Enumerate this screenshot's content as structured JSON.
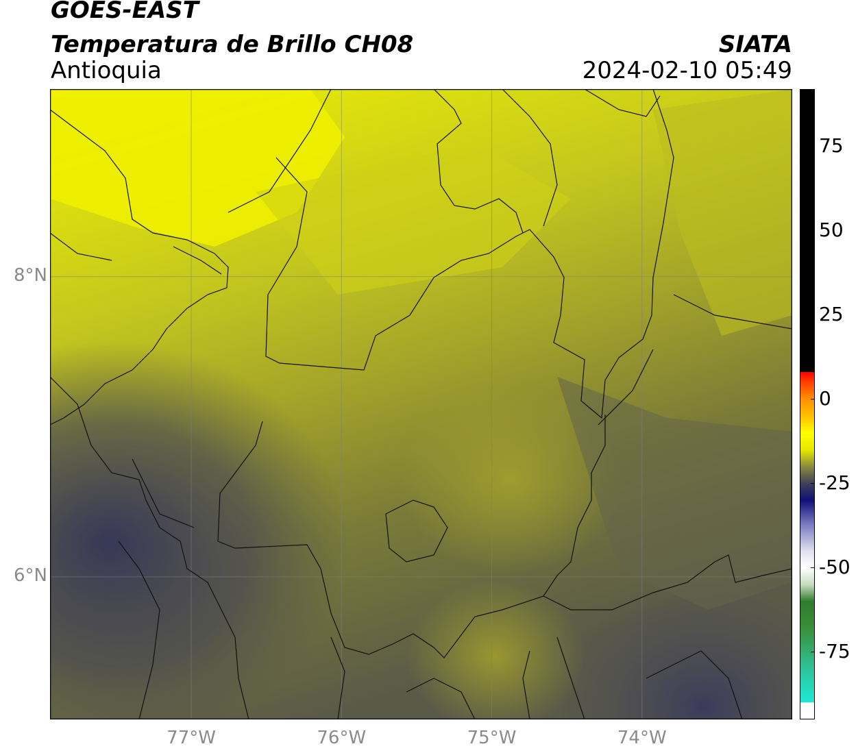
{
  "header": {
    "satellite": "GOES-EAST",
    "product": "Temperatura de Brillo CH08",
    "region": "Antioquia",
    "agency": "SIATA",
    "datetime": "2024-02-10 05:49"
  },
  "map": {
    "lon_range": [
      -77.94,
      -73.0
    ],
    "lat_range": [
      5.05,
      9.25
    ],
    "gridlines": true,
    "lon_ticks": [
      {
        "value": -77,
        "label": "77°W"
      },
      {
        "value": -76,
        "label": "76°W"
      },
      {
        "value": -75,
        "label": "75°W"
      },
      {
        "value": -74,
        "label": "74°W"
      }
    ],
    "lat_ticks": [
      {
        "value": 8,
        "label": "8°N"
      },
      {
        "value": 6,
        "label": "6°N"
      }
    ]
  },
  "colorbar": {
    "range": [
      -95,
      92
    ],
    "ticks": [
      {
        "value": 75,
        "label": "75"
      },
      {
        "value": 50,
        "label": "50"
      },
      {
        "value": 25,
        "label": "25"
      },
      {
        "value": 0,
        "label": "0"
      },
      {
        "value": -25,
        "label": "-25"
      },
      {
        "value": -50,
        "label": "-50"
      },
      {
        "value": -75,
        "label": "-75"
      }
    ],
    "stops": [
      {
        "value": -95,
        "color": "#ffffff"
      },
      {
        "value": -90,
        "color": "#ffffff"
      },
      {
        "value": -89.9,
        "color": "#1ee8d8"
      },
      {
        "value": -80,
        "color": "#2ec49a"
      },
      {
        "value": -68,
        "color": "#3a8f3a"
      },
      {
        "value": -60,
        "color": "#2e7d2e"
      },
      {
        "value": -55,
        "color": "#c8dcc0"
      },
      {
        "value": -50,
        "color": "#ffffff"
      },
      {
        "value": -45,
        "color": "#e0e0f0"
      },
      {
        "value": -37,
        "color": "#7878c0"
      },
      {
        "value": -30,
        "color": "#101078"
      },
      {
        "value": -25,
        "color": "#404058"
      },
      {
        "value": -20,
        "color": "#8a8a40"
      },
      {
        "value": -15,
        "color": "#e8e800"
      },
      {
        "value": -10,
        "color": "#ffff00"
      },
      {
        "value": -5,
        "color": "#ffc000"
      },
      {
        "value": 0,
        "color": "#ff9000"
      },
      {
        "value": 5,
        "color": "#ff4000"
      },
      {
        "value": 8,
        "color": "#ff0000"
      },
      {
        "value": 8.1,
        "color": "#000000"
      },
      {
        "value": 92,
        "color": "#000000"
      }
    ]
  }
}
